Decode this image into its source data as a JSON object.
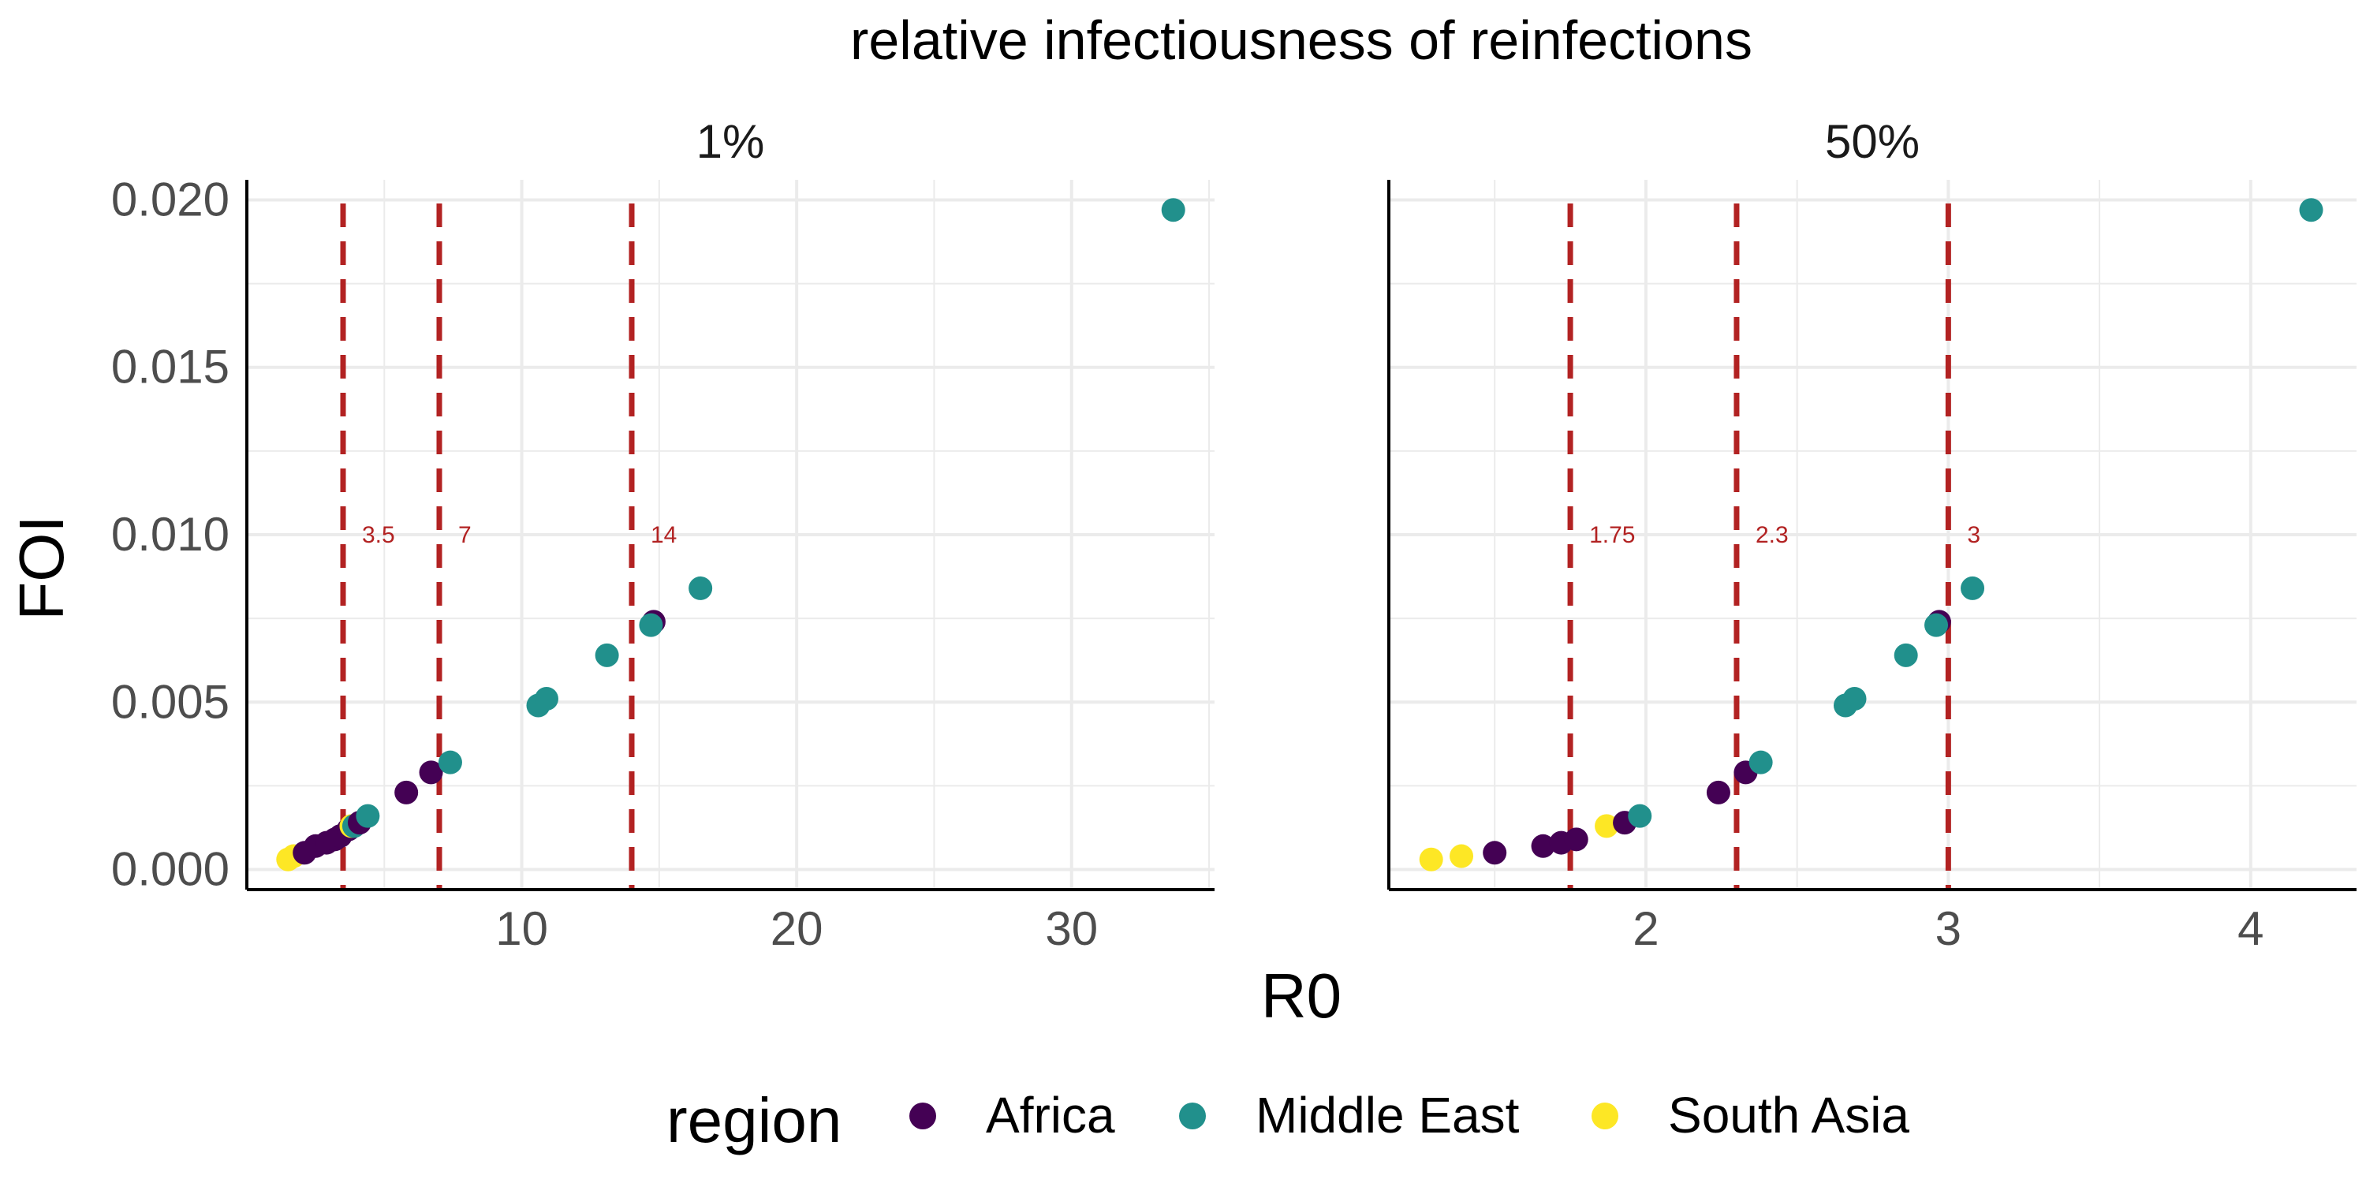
{
  "chart_data": {
    "type": "scatter",
    "title": "relative infectiousness of reinfections",
    "xlabel": "R0",
    "ylabel": "FOI",
    "legend": {
      "title": "region",
      "position": "bottom",
      "entries": [
        "Africa",
        "Middle East",
        "South Asia"
      ]
    },
    "colors": {
      "Africa": "#440154",
      "Middle East": "#21908C",
      "South Asia": "#FDE725",
      "vline": "#B22222",
      "grid": "#EBEBEB",
      "axis": "#000000"
    },
    "grid": true,
    "y_ticks": [
      "0.000",
      "0.005",
      "0.010",
      "0.015",
      "0.020"
    ],
    "y_tick_values": [
      0,
      0.005,
      0.01,
      0.015,
      0.02
    ],
    "ylim": [
      -0.0006,
      0.0206
    ],
    "panels": [
      {
        "name": "1%",
        "xlim": [
          0,
          35.2
        ],
        "x_ticks": [
          "10",
          "20",
          "30"
        ],
        "x_tick_values": [
          10,
          20,
          30
        ],
        "x_minor": [
          5,
          15,
          25,
          35
        ],
        "vlines": [
          {
            "x": 3.5,
            "label": "3.5"
          },
          {
            "x": 7,
            "label": "7"
          },
          {
            "x": 14,
            "label": "14"
          }
        ],
        "points": [
          {
            "region": "South Asia",
            "x": 1.5,
            "y": 0.0003
          },
          {
            "region": "South Asia",
            "x": 1.7,
            "y": 0.0004
          },
          {
            "region": "Africa",
            "x": 2.1,
            "y": 0.0005
          },
          {
            "region": "Africa",
            "x": 2.5,
            "y": 0.0007
          },
          {
            "region": "Africa",
            "x": 2.9,
            "y": 0.0008
          },
          {
            "region": "Africa",
            "x": 3.2,
            "y": 0.0009
          },
          {
            "region": "Africa",
            "x": 3.4,
            "y": 0.001
          },
          {
            "region": "Africa",
            "x": 3.7,
            "y": 0.0012
          },
          {
            "region": "South Asia",
            "x": 3.8,
            "y": 0.0013
          },
          {
            "region": "Middle East",
            "x": 3.9,
            "y": 0.0013
          },
          {
            "region": "Africa",
            "x": 4.1,
            "y": 0.0014
          },
          {
            "region": "Middle East",
            "x": 4.4,
            "y": 0.0016
          },
          {
            "region": "Africa",
            "x": 5.8,
            "y": 0.0023
          },
          {
            "region": "Africa",
            "x": 6.7,
            "y": 0.0029
          },
          {
            "region": "Middle East",
            "x": 7.4,
            "y": 0.0032
          },
          {
            "region": "Middle East",
            "x": 10.6,
            "y": 0.0049
          },
          {
            "region": "Middle East",
            "x": 10.9,
            "y": 0.0051
          },
          {
            "region": "Middle East",
            "x": 13.1,
            "y": 0.0064
          },
          {
            "region": "Africa",
            "x": 14.8,
            "y": 0.0074
          },
          {
            "region": "Middle East",
            "x": 14.7,
            "y": 0.0073
          },
          {
            "region": "Middle East",
            "x": 16.5,
            "y": 0.0084
          },
          {
            "region": "Middle East",
            "x": 33.7,
            "y": 0.0197
          }
        ]
      },
      {
        "name": "50%",
        "xlim": [
          1.15,
          4.35
        ],
        "x_ticks": [
          "2",
          "3",
          "4"
        ],
        "x_tick_values": [
          2,
          3,
          4
        ],
        "x_minor": [
          1.5,
          2.5,
          3.5
        ],
        "vlines": [
          {
            "x": 1.75,
            "label": "1.75"
          },
          {
            "x": 2.3,
            "label": "2.3"
          },
          {
            "x": 3,
            "label": "3"
          }
        ],
        "points": [
          {
            "region": "South Asia",
            "x": 1.29,
            "y": 0.0003
          },
          {
            "region": "South Asia",
            "x": 1.39,
            "y": 0.0004
          },
          {
            "region": "Africa",
            "x": 1.5,
            "y": 0.0005
          },
          {
            "region": "Africa",
            "x": 1.66,
            "y": 0.0007
          },
          {
            "region": "Africa",
            "x": 1.72,
            "y": 0.0008
          },
          {
            "region": "Africa",
            "x": 1.77,
            "y": 0.0009
          },
          {
            "region": "South Asia",
            "x": 1.87,
            "y": 0.0013
          },
          {
            "region": "Africa",
            "x": 1.93,
            "y": 0.0014
          },
          {
            "region": "Middle East",
            "x": 1.98,
            "y": 0.0016
          },
          {
            "region": "Africa",
            "x": 2.24,
            "y": 0.0023
          },
          {
            "region": "Africa",
            "x": 2.33,
            "y": 0.0029
          },
          {
            "region": "Middle East",
            "x": 2.38,
            "y": 0.0032
          },
          {
            "region": "Middle East",
            "x": 2.66,
            "y": 0.0049
          },
          {
            "region": "Middle East",
            "x": 2.69,
            "y": 0.0051
          },
          {
            "region": "Middle East",
            "x": 2.86,
            "y": 0.0064
          },
          {
            "region": "Africa",
            "x": 2.97,
            "y": 0.0074
          },
          {
            "region": "Middle East",
            "x": 2.96,
            "y": 0.0073
          },
          {
            "region": "Middle East",
            "x": 3.08,
            "y": 0.0084
          },
          {
            "region": "Middle East",
            "x": 4.2,
            "y": 0.0197
          }
        ]
      }
    ]
  }
}
